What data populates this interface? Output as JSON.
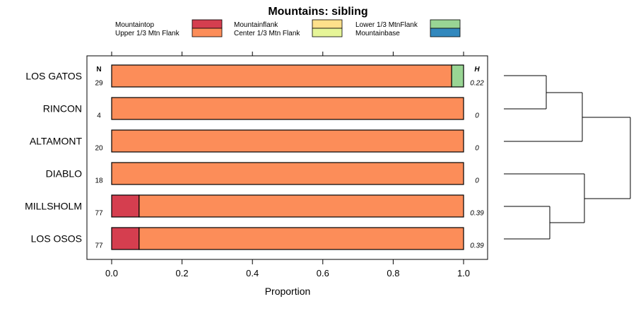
{
  "chart_data": {
    "type": "bar",
    "stacked": true,
    "orientation": "horizontal",
    "title": "Mountains: sibling",
    "xlabel": "Proportion",
    "xlim": [
      0,
      1
    ],
    "xticks": [
      "0.0",
      "0.2",
      "0.4",
      "0.6",
      "0.8",
      "1.0"
    ],
    "xtick_values": [
      0,
      0.2,
      0.4,
      0.6,
      0.8,
      1.0
    ],
    "n_header": "N",
    "h_header": "H",
    "legend": [
      {
        "name": "Mountaintop",
        "color": "#d53e4f"
      },
      {
        "name": "Upper 1/3 Mtn Flank",
        "color": "#fc8d59"
      },
      {
        "name": "Mountainflank",
        "color": "#fee08b"
      },
      {
        "name": "Center 1/3 Mtn Flank",
        "color": "#e6f598"
      },
      {
        "name": "Lower 1/3 MtnFlank",
        "color": "#99d594"
      },
      {
        "name": "Mountainbase",
        "color": "#3288bd"
      }
    ],
    "categories": [
      "LOS GATOS",
      "RINCON",
      "ALTAMONT",
      "DIABLO",
      "MILLSHOLM",
      "LOS OSOS"
    ],
    "n_values": [
      "29",
      "4",
      "20",
      "18",
      "77",
      "77"
    ],
    "h_values": [
      "0.22",
      "0",
      "0",
      "0",
      "0.39",
      "0.39"
    ],
    "series": [
      {
        "name": "Mountaintop",
        "color": "#d53e4f",
        "values": [
          0,
          0,
          0,
          0,
          0.078,
          0.078
        ]
      },
      {
        "name": "Upper 1/3 Mtn Flank",
        "color": "#fc8d59",
        "values": [
          0.966,
          1,
          1,
          1,
          0.922,
          0.922
        ]
      },
      {
        "name": "Mountainflank",
        "color": "#fee08b",
        "values": [
          0,
          0,
          0,
          0,
          0,
          0
        ]
      },
      {
        "name": "Center 1/3 Mtn Flank",
        "color": "#e6f598",
        "values": [
          0,
          0,
          0,
          0,
          0,
          0
        ]
      },
      {
        "name": "Lower 1/3 MtnFlank",
        "color": "#99d594",
        "values": [
          0.034,
          0,
          0,
          0,
          0,
          0
        ]
      },
      {
        "name": "Mountainbase",
        "color": "#3288bd",
        "values": [
          0,
          0,
          0,
          0,
          0,
          0
        ]
      }
    ],
    "dendrogram": "hierarchical clustering of rows: ((LOS GATOS, RINCON), ALTAMONT), (DIABLO, (MILLSHOLM, LOS OSOS))"
  }
}
